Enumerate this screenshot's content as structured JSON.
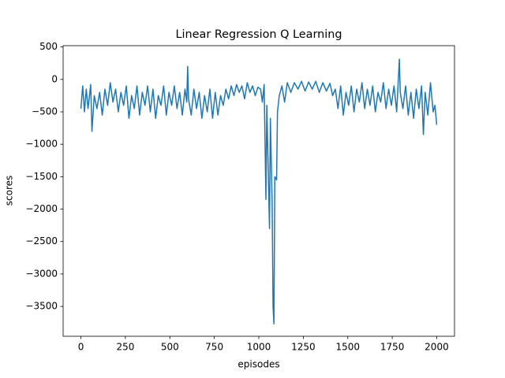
{
  "chart_data": {
    "type": "line",
    "title": "Linear Regression Q Learning",
    "x_label": "episodes",
    "y_label": "scores",
    "xlim": [
      -100,
      2100
    ],
    "ylim": [
      -3960,
      520
    ],
    "xticks": [
      0,
      250,
      500,
      750,
      1000,
      1250,
      1500,
      1750,
      2000
    ],
    "yticks": [
      {
        "value": -3500,
        "label": "−3500"
      },
      {
        "value": -3000,
        "label": "−3000"
      },
      {
        "value": -2500,
        "label": "−2500"
      },
      {
        "value": -2000,
        "label": "−2000"
      },
      {
        "value": -1500,
        "label": "−1500"
      },
      {
        "value": -1000,
        "label": "−1000"
      },
      {
        "value": -500,
        "label": "−500"
      },
      0,
      500
    ],
    "grid": false,
    "series": [
      {
        "color": "#1f77b4",
        "x": [
          0,
          10,
          20,
          30,
          40,
          55,
          62,
          75,
          90,
          105,
          120,
          135,
          150,
          165,
          180,
          195,
          210,
          225,
          240,
          255,
          270,
          285,
          300,
          315,
          330,
          345,
          360,
          375,
          390,
          405,
          420,
          435,
          450,
          465,
          480,
          495,
          510,
          525,
          540,
          555,
          570,
          585,
          595,
          600,
          605,
          620,
          635,
          650,
          665,
          680,
          695,
          710,
          725,
          740,
          755,
          770,
          785,
          800,
          815,
          830,
          845,
          860,
          875,
          890,
          905,
          920,
          935,
          950,
          965,
          980,
          995,
          1010,
          1020,
          1030,
          1040,
          1045,
          1060,
          1065,
          1075,
          1080,
          1085,
          1090,
          1100,
          1105,
          1115,
          1130,
          1145,
          1160,
          1180,
          1200,
          1220,
          1240,
          1260,
          1280,
          1300,
          1320,
          1340,
          1360,
          1380,
          1400,
          1415,
          1430,
          1445,
          1460,
          1475,
          1490,
          1505,
          1520,
          1535,
          1550,
          1565,
          1580,
          1595,
          1610,
          1625,
          1640,
          1655,
          1670,
          1685,
          1700,
          1715,
          1730,
          1745,
          1760,
          1775,
          1790,
          1795,
          1810,
          1825,
          1840,
          1855,
          1870,
          1885,
          1900,
          1915,
          1925,
          1935,
          1950,
          1965,
          1980,
          1990,
          2000
        ],
        "values": [
          -450,
          -100,
          -500,
          -150,
          -450,
          -80,
          -800,
          -250,
          -450,
          -200,
          -550,
          -150,
          -400,
          -50,
          -350,
          -150,
          -500,
          -200,
          -400,
          -100,
          -600,
          -250,
          -450,
          -100,
          -550,
          -200,
          -400,
          -100,
          -500,
          -150,
          -600,
          -250,
          -400,
          -100,
          -550,
          -200,
          -400,
          -100,
          -450,
          -200,
          -550,
          -150,
          -350,
          200,
          -300,
          -550,
          -150,
          -450,
          -200,
          -600,
          -250,
          -500,
          -150,
          -600,
          -200,
          -550,
          -250,
          -400,
          -150,
          -300,
          -100,
          -250,
          -80,
          -200,
          -100,
          -300,
          -50,
          -200,
          -100,
          -250,
          -120,
          -150,
          -350,
          -80,
          -1850,
          -400,
          -2300,
          -600,
          -1900,
          -3500,
          -3770,
          -1500,
          -1550,
          -500,
          -250,
          -100,
          -350,
          -50,
          -200,
          -50,
          -150,
          -30,
          -180,
          -40,
          -150,
          -30,
          -200,
          -50,
          -180,
          -60,
          -250,
          -150,
          -450,
          -100,
          -550,
          -200,
          -400,
          -100,
          -500,
          -150,
          -350,
          -50,
          -450,
          -150,
          -400,
          -100,
          -500,
          -200,
          -350,
          -50,
          -450,
          -150,
          -400,
          -100,
          -500,
          310,
          -200,
          -450,
          -100,
          -550,
          -200,
          -600,
          -150,
          -450,
          -100,
          -850,
          -200,
          -550,
          -50,
          -500,
          -400,
          -700
        ]
      }
    ]
  }
}
